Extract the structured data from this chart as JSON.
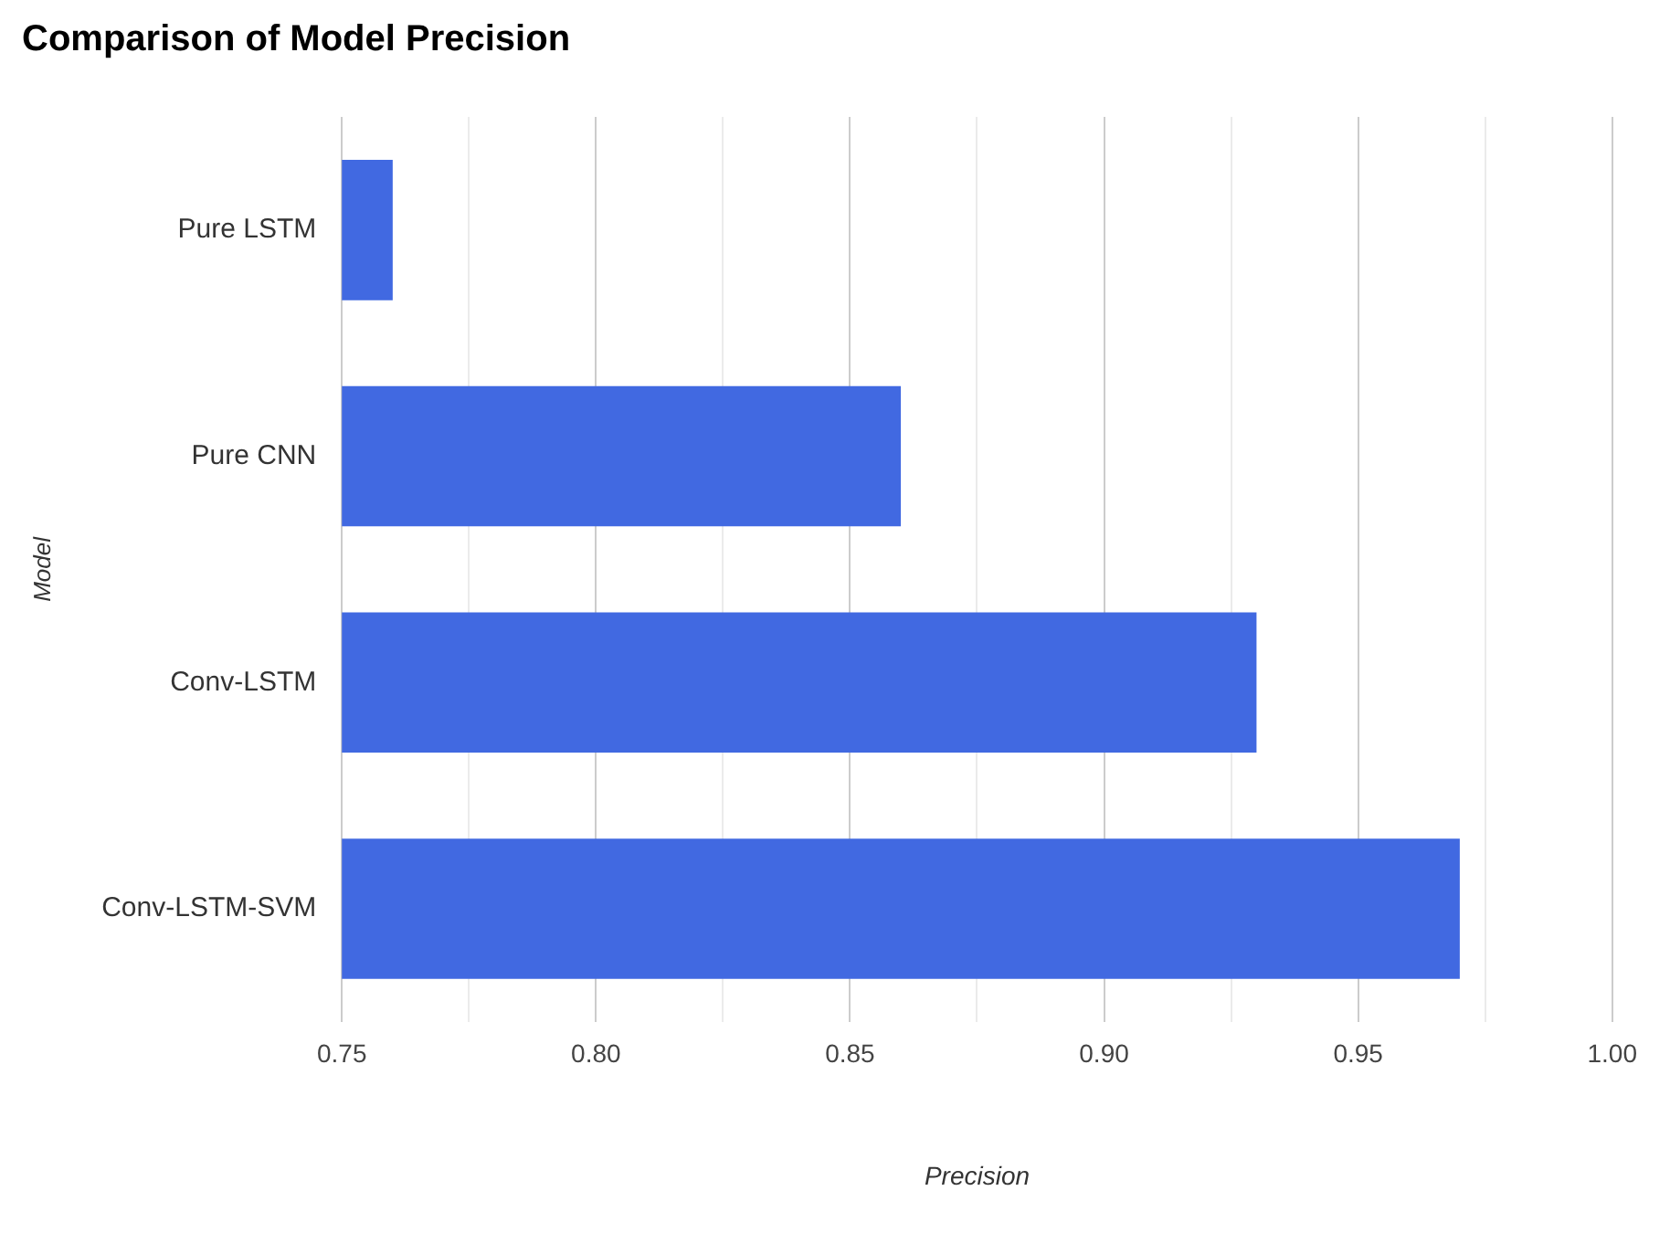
{
  "chart_data": {
    "type": "bar",
    "orientation": "horizontal",
    "title": "Comparison of Model Precision",
    "xlabel": "Precision",
    "ylabel": "Model",
    "categories": [
      "Pure LSTM",
      "Pure CNN",
      "Conv-LSTM",
      "Conv-LSTM-SVM"
    ],
    "values": [
      0.76,
      0.86,
      0.93,
      0.97
    ],
    "color": "#4169e1",
    "xlim": [
      0.75,
      1.0
    ],
    "xticks": [
      0.75,
      {
        "value": 0.775,
        "label": null
      },
      {
        "value": 0.8,
        "label": "0.80"
      },
      {
        "value": 0.825,
        "label": null
      },
      0.85,
      {
        "value": 0.875,
        "label": null
      },
      {
        "value": 0.9,
        "label": "0.90"
      },
      {
        "value": 0.925,
        "label": null
      },
      0.95,
      {
        "value": 0.975,
        "label": null
      },
      {
        "value": 1.0,
        "label": "1.00"
      }
    ],
    "grid": "x",
    "legend": false
  }
}
